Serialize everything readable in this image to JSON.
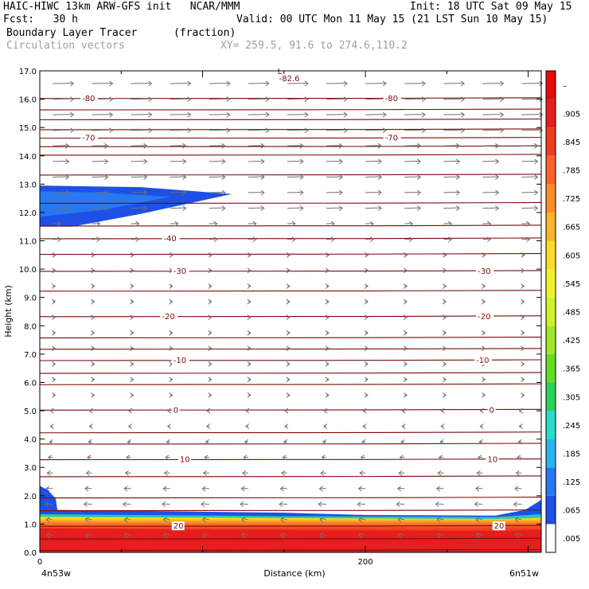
{
  "header": {
    "line1_left": "HAIC-HIWC 13km ARW-GFS init   NCAR/MMM",
    "line1_right": "Init: 18 UTC Sat 09 May 15",
    "line2_left": "Fcst:   30 h",
    "line2_right": "Valid: 00 UTC Mon 11 May 15 (21 LST Sun 10 May 15)",
    "line3_left": "Boundary Layer Tracer",
    "line3_units": "(fraction)",
    "line4_left": "Circulation vectors",
    "line4_xy": "XY= 259.5, 91.6 to 274.6,110.2"
  },
  "chart_data": {
    "type": "heatmap",
    "xlabel": "Distance (km)",
    "ylabel": "Height (km)",
    "ylim": [
      0,
      17
    ],
    "xlim": [
      0,
      308
    ],
    "y_ticks": [
      "0.0",
      "1.0",
      "2.0",
      "3.0",
      "4.0",
      "5.0",
      "6.0",
      "7.0",
      "8.0",
      "9.0",
      "10.0",
      "11.0",
      "12.0",
      "13.0",
      "14.0",
      "15.0",
      "16.0",
      "17.0"
    ],
    "x_ticks": [
      {
        "value": 0,
        "label": "0"
      },
      {
        "value": 200,
        "label": "200"
      }
    ],
    "x_endpoints": {
      "left": "4n53w",
      "right": "6n51w"
    },
    "colorbar": {
      "labels": [
        ".005",
        ".065",
        ".125",
        ".185",
        ".245",
        ".305",
        ".365",
        ".425",
        ".485",
        ".545",
        ".605",
        ".665",
        ".725",
        ".785",
        ".845",
        ".905",
        "–"
      ],
      "colors": [
        "#ffffff",
        "#1e50e6",
        "#2878f0",
        "#28b4f0",
        "#28dcc8",
        "#28d25a",
        "#64dc28",
        "#a0e628",
        "#d2f028",
        "#f0f028",
        "#fadc28",
        "#fab428",
        "#fa8c28",
        "#fa6428",
        "#f03c1e",
        "#e61e1e",
        "#e60a0a"
      ]
    },
    "temperature_contours": [
      {
        "value": "-82.6",
        "height": 16.75,
        "label_x": 147
      },
      {
        "value": "-80",
        "height": 16.05,
        "labels": [
          26,
          212
        ]
      },
      {
        "value": "-70",
        "height": 14.65,
        "labels": [
          26,
          212
        ]
      },
      {
        "value": "-40",
        "height": 11.1,
        "labels": [
          76
        ]
      },
      {
        "value": "-30",
        "height": 9.95,
        "labels": [
          82,
          269
        ]
      },
      {
        "value": "-20",
        "height": 8.35,
        "labels": [
          75,
          269
        ]
      },
      {
        "value": "-10",
        "height": 6.8,
        "labels": [
          82,
          268
        ]
      },
      {
        "value": "0",
        "height": 5.05,
        "labels": [
          82,
          276
        ]
      },
      {
        "value": "10",
        "height": 3.3,
        "labels": [
          86,
          275
        ]
      },
      {
        "value": "20",
        "height": 0.95,
        "labels": [
          82,
          279
        ]
      }
    ],
    "plain_contour_heights": [
      0.1,
      0.5,
      1.5,
      1.95,
      2.7,
      3.85,
      4.25,
      5.95,
      6.35,
      7.2,
      7.6,
      9.25,
      10.55,
      11.55,
      12.35,
      13.35,
      14.05,
      14.35,
      14.95,
      15.3,
      15.65
    ],
    "tracer_upper_layer": {
      "x": [
        0,
        62,
        118
      ],
      "base": 11.5,
      "top": 12.95,
      "value": 0.06
    },
    "tracer_boundary_layer": {
      "top_height_km": 1.35,
      "value_at_surface": 0.99
    },
    "vector_field": {
      "upper_level_wind": "westerly",
      "lower_level_wind": "easterly",
      "strong_jet_heights_km": [
        12.5,
        16.0
      ]
    }
  }
}
